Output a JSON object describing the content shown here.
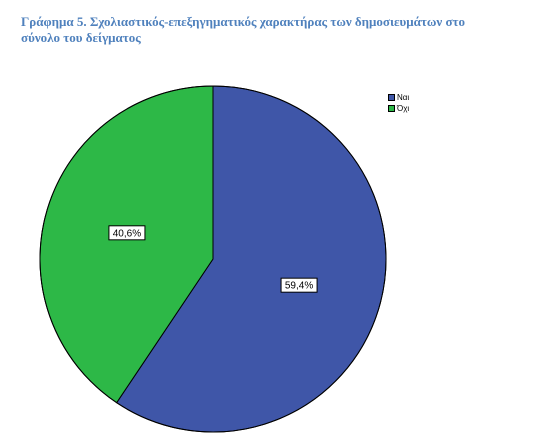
{
  "caption": {
    "line1": "Γράφημα 5. Σχολιαστικός-επεξηγηματικός χαρακτήρας των δημοσιευμάτων στο",
    "line2": "σύνολο του δείγματος"
  },
  "chart_data": {
    "type": "pie",
    "title": "Γράφημα 5. Σχολιαστικός-επεξηγηματικός χαρακτήρας των δημοσιευμάτων στο σύνολο του δείγματος",
    "slices": [
      {
        "name": "Ναι",
        "value": 59.4,
        "label": "59,4%",
        "color": "#3f56a8"
      },
      {
        "name": "Όχι",
        "value": 40.6,
        "label": "40,6%",
        "color": "#2db847"
      }
    ],
    "legend_position": "top-right",
    "start_angle": "12 o'clock",
    "direction": "clockwise"
  }
}
